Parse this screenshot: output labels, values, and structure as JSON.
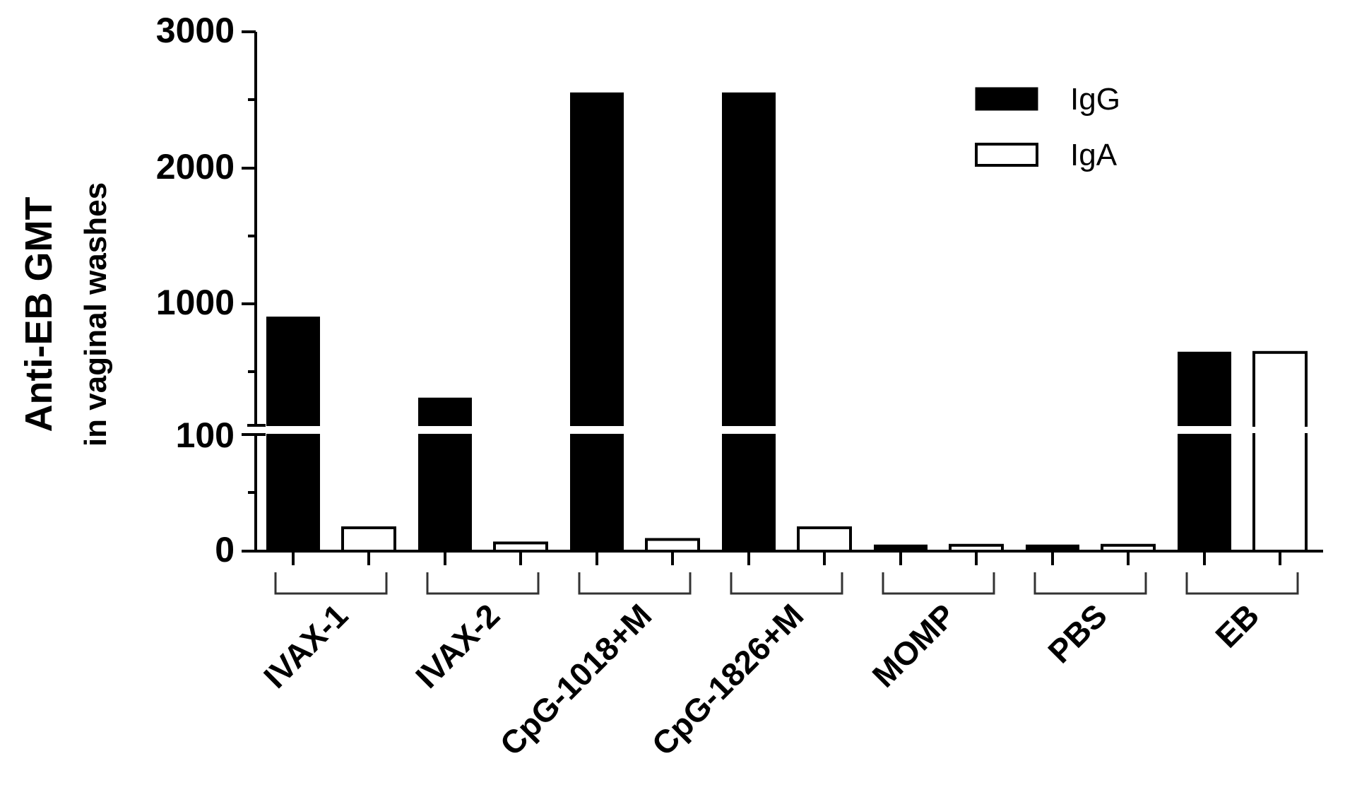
{
  "chart_data": {
    "type": "bar",
    "title": "",
    "ylabel": [
      "Anti-EB GMT",
      "in vaginal washes"
    ],
    "xlabel": "",
    "categories": [
      "IVAX-1",
      "IVAX-2",
      "CpG-1018+M",
      "CpG-1826+M",
      "MOMP",
      "PBS",
      "EB"
    ],
    "series": [
      {
        "name": "IgG",
        "fill": "#000000",
        "values": [
          900,
          300,
          2560,
          2560,
          5,
          5,
          640
        ]
      },
      {
        "name": "IgA",
        "fill": "#ffffff",
        "values": [
          20,
          7,
          10,
          20,
          5,
          5,
          640
        ]
      }
    ],
    "y_axis": {
      "broken": true,
      "break_at": 100,
      "lower_segment": {
        "range": [
          0,
          100
        ],
        "ticks": [
          "0",
          "100"
        ]
      },
      "upper_segment": {
        "range": [
          100,
          3000
        ],
        "ticks": [
          "1000",
          "2000",
          "3000"
        ]
      },
      "tick_labels": [
        "0",
        "100",
        "1000",
        "2000",
        "3000"
      ],
      "ylim": [
        0,
        3000
      ]
    },
    "legend": {
      "position": "upper right",
      "entries": [
        "IgG",
        "IgA"
      ]
    },
    "grid": false
  },
  "labels": {
    "ytitle_line1": "Anti-EB GMT",
    "ytitle_line2": "in vaginal washes",
    "yticks": {
      "t0": "0",
      "t100": "100",
      "t1000": "1000",
      "t2000": "2000",
      "t3000": "3000"
    },
    "legend": {
      "igg": "IgG",
      "iga": "IgA"
    },
    "x": {
      "c0": "IVAX-1",
      "c1": "IVAX-2",
      "c2": "CpG-1018+M",
      "c3": "CpG-1826+M",
      "c4": "MOMP",
      "c5": "PBS",
      "c6": "EB"
    }
  }
}
